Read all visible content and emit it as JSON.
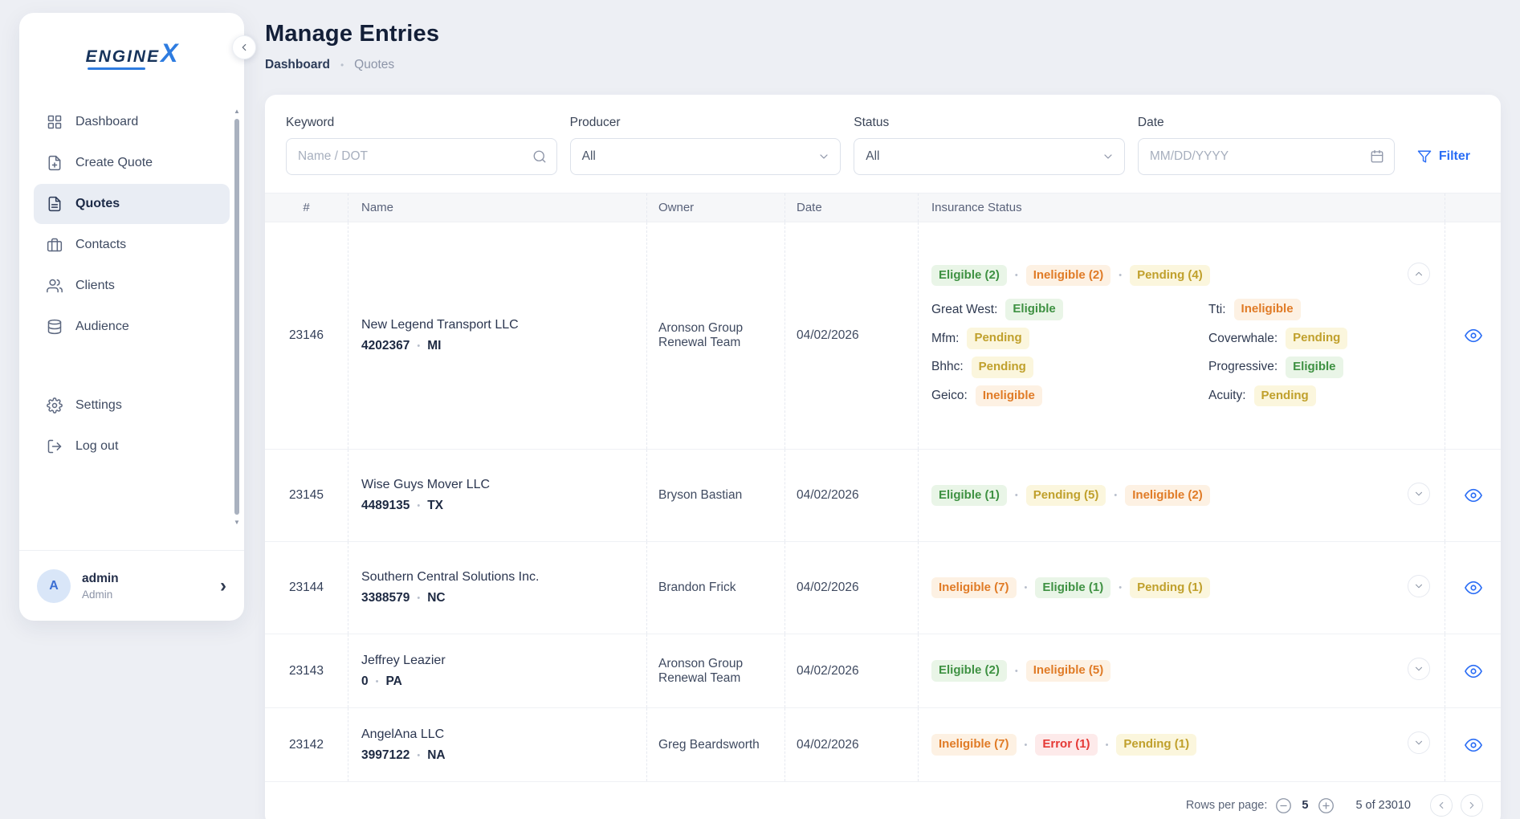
{
  "accent_color": "#2a6df5",
  "status_colors": {
    "eligible": {
      "fg": "#3e9142",
      "bg": "#e9f5e7"
    },
    "ineligible": {
      "fg": "#e07b26",
      "bg": "#fdf1e3"
    },
    "pending": {
      "fg": "#c0a02c",
      "bg": "#fbf6dd"
    },
    "error": {
      "fg": "#e53935",
      "bg": "#fdeaea"
    }
  },
  "sidebar": {
    "logo_text": "ENGINE",
    "logo_x": "X",
    "items": [
      {
        "label": "Dashboard",
        "icon": "grid",
        "active": false
      },
      {
        "label": "Create Quote",
        "icon": "file-plus",
        "active": false
      },
      {
        "label": "Quotes",
        "icon": "file-text",
        "active": true
      },
      {
        "label": "Contacts",
        "icon": "briefcase",
        "active": false
      },
      {
        "label": "Clients",
        "icon": "users",
        "active": false
      },
      {
        "label": "Audience",
        "icon": "database",
        "active": false
      }
    ],
    "secondary_items": [
      {
        "label": "Settings",
        "icon": "settings",
        "active": false
      },
      {
        "label": "Log out",
        "icon": "log-out",
        "active": false
      }
    ],
    "user": {
      "initial": "A",
      "name": "admin",
      "role": "Admin"
    }
  },
  "header": {
    "title": "Manage Entries",
    "breadcrumb": [
      "Dashboard",
      "Quotes"
    ],
    "breadcrumb_separator": "•"
  },
  "filters": {
    "keyword": {
      "label": "Keyword",
      "placeholder": "Name / DOT",
      "value": ""
    },
    "producer": {
      "label": "Producer",
      "value": "All"
    },
    "status": {
      "label": "Status",
      "value": "All"
    },
    "date": {
      "label": "Date",
      "placeholder": "MM/DD/YYYY",
      "value": ""
    },
    "filter_button_label": "Filter"
  },
  "table": {
    "columns": [
      "#",
      "Name",
      "Owner",
      "Date",
      "Insurance Status"
    ],
    "rows": [
      {
        "id": "23146",
        "name": "New Legend Transport LLC",
        "dot": "4202367",
        "state": "MI",
        "owner": "Aronson Group Renewal Team",
        "date": "04/02/2026",
        "expanded": true,
        "badges": [
          {
            "label": "Eligible (2)",
            "type": "eligible"
          },
          {
            "label": "Ineligible (2)",
            "type": "ineligible"
          },
          {
            "label": "Pending (4)",
            "type": "pending"
          }
        ],
        "details": [
          {
            "carrier": "Great West:",
            "status": "Eligible",
            "type": "eligible"
          },
          {
            "carrier": "Mfm:",
            "status": "Pending",
            "type": "pending"
          },
          {
            "carrier": "Bhhc:",
            "status": "Pending",
            "type": "pending"
          },
          {
            "carrier": "Geico:",
            "status": "Ineligible",
            "type": "ineligible"
          },
          {
            "carrier": "Tti:",
            "status": "Ineligible",
            "type": "ineligible"
          },
          {
            "carrier": "Coverwhale:",
            "status": "Pending",
            "type": "pending"
          },
          {
            "carrier": "Progressive:",
            "status": "Eligible",
            "type": "eligible"
          },
          {
            "carrier": "Acuity:",
            "status": "Pending",
            "type": "pending"
          }
        ]
      },
      {
        "id": "23145",
        "name": "Wise Guys Mover LLC",
        "dot": "4489135",
        "state": "TX",
        "owner": "Bryson Bastian",
        "date": "04/02/2026",
        "expanded": false,
        "tall": true,
        "badges": [
          {
            "label": "Eligible (1)",
            "type": "eligible"
          },
          {
            "label": "Pending (5)",
            "type": "pending"
          },
          {
            "label": "Ineligible (2)",
            "type": "ineligible"
          }
        ]
      },
      {
        "id": "23144",
        "name": "Southern Central Solutions Inc.",
        "dot": "3388579",
        "state": "NC",
        "owner": "Brandon Frick",
        "date": "04/02/2026",
        "expanded": false,
        "tall": true,
        "badges": [
          {
            "label": "Ineligible (7)",
            "type": "ineligible"
          },
          {
            "label": "Eligible (1)",
            "type": "eligible"
          },
          {
            "label": "Pending (1)",
            "type": "pending"
          }
        ]
      },
      {
        "id": "23143",
        "name": "Jeffrey Leazier",
        "dot": "0",
        "state": "PA",
        "owner": "Aronson Group Renewal Team",
        "date": "04/02/2026",
        "expanded": false,
        "tall": false,
        "badges": [
          {
            "label": "Eligible (2)",
            "type": "eligible"
          },
          {
            "label": "Ineligible (5)",
            "type": "ineligible"
          }
        ]
      },
      {
        "id": "23142",
        "name": "AngelAna LLC",
        "dot": "3997122",
        "state": "NA",
        "owner": "Greg Beardsworth",
        "date": "04/02/2026",
        "expanded": false,
        "tall": false,
        "badges": [
          {
            "label": "Ineligible (7)",
            "type": "ineligible"
          },
          {
            "label": "Error (1)",
            "type": "error"
          },
          {
            "label": "Pending (1)",
            "type": "pending"
          }
        ]
      }
    ]
  },
  "pagination": {
    "rows_per_page_label": "Rows per page:",
    "rows_per_page_value": "5",
    "range_text": "5 of 23010"
  }
}
